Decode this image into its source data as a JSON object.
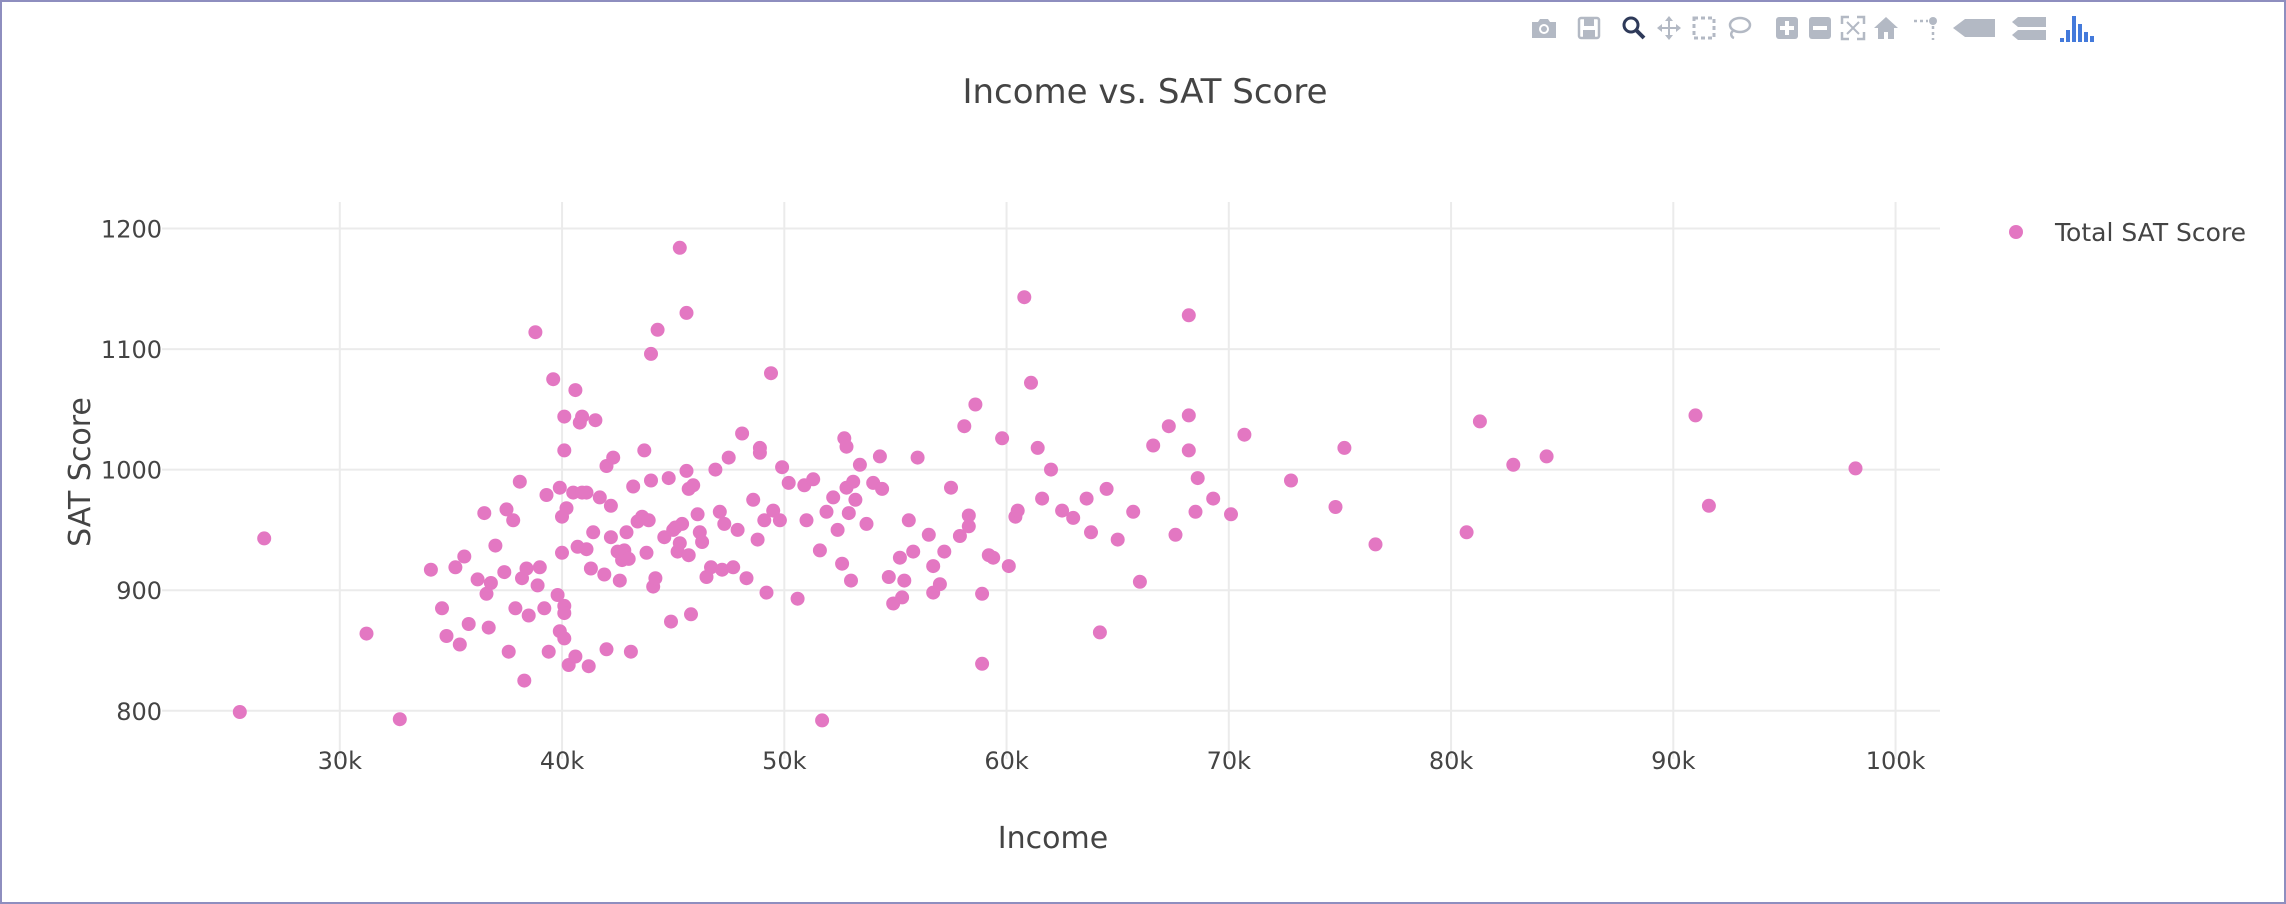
{
  "modebar": {
    "buttons": [
      "camera-icon",
      "save-icon",
      "zoom-icon",
      "pan-icon",
      "box-select-icon",
      "lasso-select-icon",
      "zoom-in-icon",
      "zoom-out-icon",
      "autoscale-icon",
      "reset-axes-icon",
      "spike-lines-icon",
      "hover-closest-icon",
      "hover-compare-icon",
      "plotly-logo-icon"
    ]
  },
  "chart_data": {
    "type": "scatter",
    "title": "Income vs. SAT Score",
    "xlabel": "Income",
    "ylabel": "SAT Score",
    "xlim": [
      22000,
      102000
    ],
    "ylim": [
      760,
      1222
    ],
    "x_ticks": [
      30000,
      40000,
      50000,
      60000,
      70000,
      80000,
      90000,
      100000
    ],
    "x_tick_labels": [
      "30k",
      "40k",
      "50k",
      "60k",
      "70k",
      "80k",
      "90k",
      "100k"
    ],
    "y_ticks": [
      800,
      900,
      1000,
      1100,
      1200
    ],
    "y_tick_labels": [
      "800",
      "900",
      "1000",
      "1100",
      "1200"
    ],
    "grid": true,
    "legend_position": "top-right",
    "series": [
      {
        "name": "Total SAT Score",
        "color": "#e377c2",
        "points": [
          [
            25500,
            799
          ],
          [
            26600,
            943
          ],
          [
            31200,
            864
          ],
          [
            32700,
            793
          ],
          [
            34100,
            917
          ],
          [
            34600,
            885
          ],
          [
            34800,
            862
          ],
          [
            35200,
            919
          ],
          [
            35400,
            855
          ],
          [
            35600,
            928
          ],
          [
            35800,
            872
          ],
          [
            36200,
            909
          ],
          [
            36500,
            964
          ],
          [
            36600,
            897
          ],
          [
            36800,
            906
          ],
          [
            36700,
            869
          ],
          [
            37000,
            937
          ],
          [
            37400,
            915
          ],
          [
            37500,
            967
          ],
          [
            37600,
            849
          ],
          [
            37800,
            958
          ],
          [
            37900,
            885
          ],
          [
            38100,
            990
          ],
          [
            38200,
            910
          ],
          [
            38300,
            825
          ],
          [
            38400,
            918
          ],
          [
            38500,
            879
          ],
          [
            38800,
            1114
          ],
          [
            38900,
            904
          ],
          [
            39000,
            919
          ],
          [
            39200,
            885
          ],
          [
            39300,
            979
          ],
          [
            39400,
            849
          ],
          [
            39600,
            1075
          ],
          [
            39800,
            896
          ],
          [
            39900,
            866
          ],
          [
            39900,
            985
          ],
          [
            40000,
            961
          ],
          [
            40000,
            931
          ],
          [
            40100,
            1016
          ],
          [
            40100,
            1044
          ],
          [
            40100,
            887
          ],
          [
            40100,
            881
          ],
          [
            40100,
            860
          ],
          [
            40200,
            968
          ],
          [
            40300,
            838
          ],
          [
            40500,
            981
          ],
          [
            40600,
            845
          ],
          [
            40600,
            1066
          ],
          [
            40700,
            936
          ],
          [
            40800,
            1039
          ],
          [
            40900,
            981
          ],
          [
            40900,
            1044
          ],
          [
            41100,
            981
          ],
          [
            41100,
            934
          ],
          [
            41200,
            837
          ],
          [
            41300,
            918
          ],
          [
            41400,
            948
          ],
          [
            41500,
            1041
          ],
          [
            41700,
            977
          ],
          [
            41900,
            913
          ],
          [
            42000,
            851
          ],
          [
            42000,
            1003
          ],
          [
            42200,
            970
          ],
          [
            42200,
            944
          ],
          [
            42300,
            1010
          ],
          [
            42500,
            932
          ],
          [
            42600,
            908
          ],
          [
            42700,
            925
          ],
          [
            42800,
            933
          ],
          [
            42900,
            948
          ],
          [
            43000,
            926
          ],
          [
            43100,
            849
          ],
          [
            43200,
            986
          ],
          [
            43400,
            957
          ],
          [
            43600,
            961
          ],
          [
            43700,
            1016
          ],
          [
            43800,
            931
          ],
          [
            43900,
            958
          ],
          [
            44000,
            991
          ],
          [
            44000,
            1096
          ],
          [
            44100,
            903
          ],
          [
            44200,
            910
          ],
          [
            44300,
            1116
          ],
          [
            44600,
            944
          ],
          [
            44800,
            993
          ],
          [
            44900,
            874
          ],
          [
            45000,
            950
          ],
          [
            45100,
            952
          ],
          [
            45200,
            932
          ],
          [
            45300,
            1184
          ],
          [
            45300,
            939
          ],
          [
            45400,
            955
          ],
          [
            45600,
            999
          ],
          [
            45600,
            1130
          ],
          [
            45700,
            929
          ],
          [
            45700,
            984
          ],
          [
            45800,
            880
          ],
          [
            45900,
            987
          ],
          [
            46100,
            963
          ],
          [
            46200,
            948
          ],
          [
            46300,
            940
          ],
          [
            46500,
            911
          ],
          [
            46700,
            919
          ],
          [
            46900,
            1000
          ],
          [
            47100,
            965
          ],
          [
            47200,
            917
          ],
          [
            47300,
            955
          ],
          [
            47500,
            1010
          ],
          [
            47700,
            919
          ],
          [
            47900,
            950
          ],
          [
            48100,
            1030
          ],
          [
            48300,
            910
          ],
          [
            48600,
            975
          ],
          [
            48800,
            942
          ],
          [
            48900,
            1014
          ],
          [
            48900,
            1018
          ],
          [
            49100,
            958
          ],
          [
            49200,
            898
          ],
          [
            49400,
            1080
          ],
          [
            49500,
            966
          ],
          [
            49800,
            958
          ],
          [
            49900,
            1002
          ],
          [
            50200,
            989
          ],
          [
            50600,
            893
          ],
          [
            50900,
            987
          ],
          [
            51000,
            958
          ],
          [
            51300,
            992
          ],
          [
            51600,
            933
          ],
          [
            51700,
            792
          ],
          [
            51900,
            965
          ],
          [
            52200,
            977
          ],
          [
            52400,
            950
          ],
          [
            52600,
            922
          ],
          [
            52700,
            1026
          ],
          [
            52800,
            1019
          ],
          [
            52800,
            985
          ],
          [
            52900,
            964
          ],
          [
            53000,
            908
          ],
          [
            53100,
            990
          ],
          [
            53200,
            975
          ],
          [
            53400,
            1004
          ],
          [
            53700,
            955
          ],
          [
            54000,
            989
          ],
          [
            54300,
            1011
          ],
          [
            54400,
            984
          ],
          [
            54700,
            911
          ],
          [
            54900,
            889
          ],
          [
            55200,
            927
          ],
          [
            55300,
            894
          ],
          [
            55400,
            908
          ],
          [
            55600,
            958
          ],
          [
            55800,
            932
          ],
          [
            56000,
            1010
          ],
          [
            56500,
            946
          ],
          [
            56700,
            898
          ],
          [
            56700,
            920
          ],
          [
            57000,
            905
          ],
          [
            57200,
            932
          ],
          [
            57500,
            985
          ],
          [
            57900,
            945
          ],
          [
            58100,
            1036
          ],
          [
            58300,
            962
          ],
          [
            58300,
            953
          ],
          [
            58600,
            1054
          ],
          [
            58900,
            897
          ],
          [
            58900,
            839
          ],
          [
            59200,
            929
          ],
          [
            59400,
            927
          ],
          [
            59800,
            1026
          ],
          [
            60100,
            920
          ],
          [
            60400,
            961
          ],
          [
            60500,
            966
          ],
          [
            60800,
            1143
          ],
          [
            61100,
            1072
          ],
          [
            61400,
            1018
          ],
          [
            61600,
            976
          ],
          [
            62000,
            1000
          ],
          [
            62500,
            966
          ],
          [
            63000,
            960
          ],
          [
            63600,
            976
          ],
          [
            63800,
            948
          ],
          [
            64200,
            865
          ],
          [
            64500,
            984
          ],
          [
            65000,
            942
          ],
          [
            65700,
            965
          ],
          [
            66000,
            907
          ],
          [
            66600,
            1020
          ],
          [
            67300,
            1036
          ],
          [
            67600,
            946
          ],
          [
            68200,
            1128
          ],
          [
            68200,
            1045
          ],
          [
            68200,
            1016
          ],
          [
            68500,
            965
          ],
          [
            68600,
            993
          ],
          [
            69300,
            976
          ],
          [
            70100,
            963
          ],
          [
            70700,
            1029
          ],
          [
            72800,
            991
          ],
          [
            74800,
            969
          ],
          [
            75200,
            1018
          ],
          [
            76600,
            938
          ],
          [
            80700,
            948
          ],
          [
            81300,
            1040
          ],
          [
            82800,
            1004
          ],
          [
            84300,
            1011
          ],
          [
            91000,
            1045
          ],
          [
            91600,
            970
          ],
          [
            98200,
            1001
          ]
        ]
      }
    ]
  }
}
